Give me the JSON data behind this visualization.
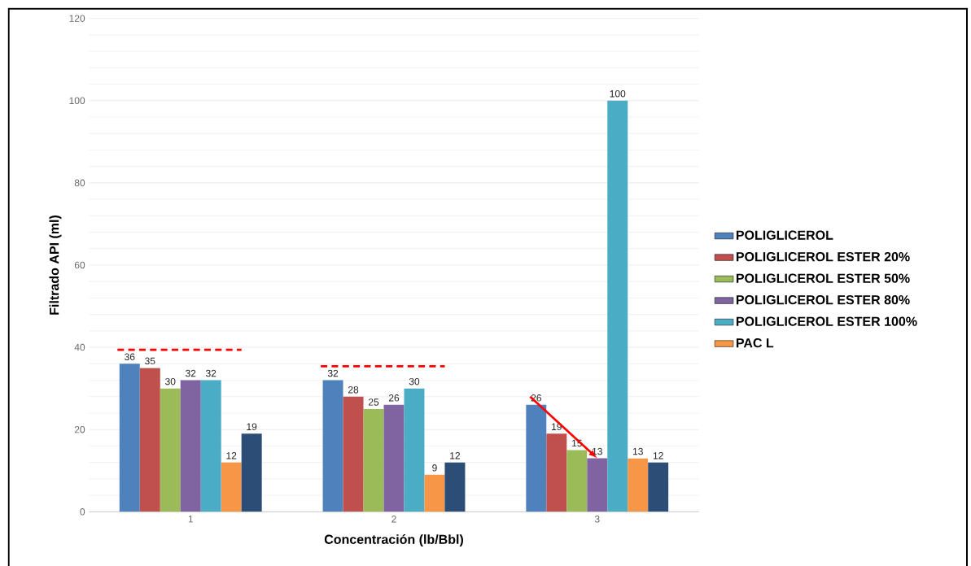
{
  "chart_data": {
    "type": "bar",
    "xlabel": "Concentración (lb/Bbl)",
    "ylabel": "Filtrado API (ml)",
    "categories": [
      "1",
      "2",
      "3"
    ],
    "series": [
      {
        "name": "POLIGLICEROL",
        "color": "#4f81bd",
        "values": [
          36,
          32,
          26
        ]
      },
      {
        "name": "POLIGLICEROL ESTER 20%",
        "color": "#c0504d",
        "values": [
          35,
          28,
          19
        ]
      },
      {
        "name": "POLIGLICEROL  ESTER 50%",
        "color": "#9bbb59",
        "values": [
          30,
          25,
          15
        ]
      },
      {
        "name": "POLIGLICEROL ESTER 80%",
        "color": "#8064a2",
        "values": [
          32,
          26,
          13
        ]
      },
      {
        "name": "POLIGLICEROL ESTER 100%",
        "color": "#4bacc6",
        "values": [
          32,
          30,
          100
        ]
      },
      {
        "name": "PAC L",
        "color": "#f79646",
        "values": [
          12,
          9,
          13
        ]
      },
      {
        "color": "#2c4d75",
        "values": [
          19,
          12,
          12
        ]
      }
    ],
    "ylim": [
      0,
      120
    ],
    "yticks": [
      0,
      20,
      40,
      60,
      80,
      100,
      120
    ],
    "grid": "y",
    "legend": "right",
    "data_labels": true
  }
}
